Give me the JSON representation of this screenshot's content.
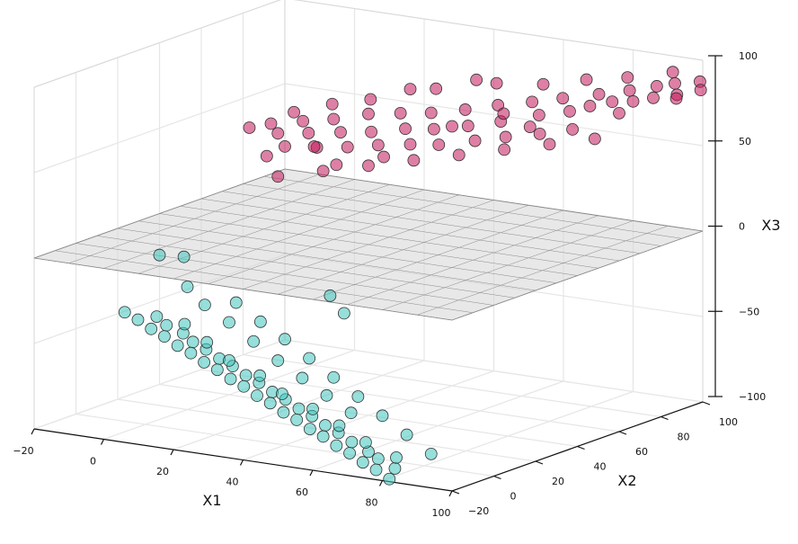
{
  "chart_data": {
    "type": "scatter3d",
    "title": "",
    "xlabel": "X1",
    "ylabel": "X2",
    "zlabel": "X3",
    "xlim": [
      -20,
      100
    ],
    "ylim": [
      -20,
      100
    ],
    "zlim": [
      -100,
      100
    ],
    "x_ticks": [
      -20,
      0,
      20,
      40,
      60,
      80,
      100
    ],
    "y_ticks": [
      -20,
      0,
      20,
      40,
      60,
      80,
      100
    ],
    "z_ticks": [
      -100,
      -50,
      0,
      50,
      100
    ],
    "x_tick_labels": [
      "−20",
      "0",
      "20",
      "40",
      "60",
      "80",
      "100"
    ],
    "y_tick_labels": [
      "−20",
      "0",
      "20",
      "40",
      "60",
      "80",
      "100"
    ],
    "z_tick_labels": [
      "−100",
      "−50",
      "0",
      "50",
      "100"
    ],
    "grid": true,
    "plane": {
      "description": "",
      "z": 0,
      "x_range": [
        -20,
        100
      ],
      "y_range": [
        -20,
        100
      ]
    },
    "series": [
      {
        "color": "#c2185b",
        "points": [
          [
            0,
            60,
            50
          ],
          [
            5,
            55,
            48
          ],
          [
            8,
            62,
            53
          ],
          [
            10,
            50,
            44
          ],
          [
            12,
            58,
            49
          ],
          [
            15,
            65,
            55
          ],
          [
            18,
            52,
            45
          ],
          [
            20,
            60,
            51
          ],
          [
            22,
            70,
            58
          ],
          [
            25,
            55,
            46
          ],
          [
            27,
            63,
            52
          ],
          [
            30,
            72,
            60
          ],
          [
            32,
            58,
            48
          ],
          [
            35,
            66,
            55
          ],
          [
            37,
            75,
            61
          ],
          [
            40,
            60,
            50
          ],
          [
            42,
            68,
            56
          ],
          [
            45,
            78,
            64
          ],
          [
            47,
            62,
            51
          ],
          [
            50,
            71,
            59
          ],
          [
            52,
            82,
            67
          ],
          [
            55,
            66,
            54
          ],
          [
            57,
            75,
            62
          ],
          [
            60,
            85,
            70
          ],
          [
            62,
            69,
            57
          ],
          [
            65,
            80,
            66
          ],
          [
            67,
            88,
            73
          ],
          [
            70,
            72,
            60
          ],
          [
            72,
            83,
            69
          ],
          [
            75,
            92,
            76
          ],
          [
            77,
            76,
            63
          ],
          [
            80,
            90,
            74
          ],
          [
            82,
            95,
            79
          ],
          [
            85,
            85,
            71
          ],
          [
            88,
            98,
            82
          ],
          [
            90,
            93,
            78
          ],
          [
            92,
            100,
            84
          ],
          [
            95,
            96,
            80
          ],
          [
            98,
            102,
            86
          ],
          [
            100,
            99,
            83
          ],
          [
            14,
            40,
            32
          ],
          [
            24,
            45,
            36
          ],
          [
            34,
            50,
            40
          ],
          [
            44,
            55,
            44
          ],
          [
            54,
            60,
            48
          ],
          [
            64,
            65,
            52
          ],
          [
            74,
            70,
            56
          ],
          [
            84,
            75,
            60
          ],
          [
            28,
            80,
            70
          ],
          [
            48,
            88,
            76
          ],
          [
            6,
            48,
            38
          ],
          [
            16,
            54,
            44
          ],
          [
            26,
            48,
            39
          ],
          [
            36,
            54,
            44
          ],
          [
            46,
            70,
            58
          ],
          [
            56,
            78,
            65
          ],
          [
            66,
            74,
            62
          ],
          [
            76,
            86,
            72
          ],
          [
            86,
            90,
            76
          ],
          [
            96,
            94,
            79
          ],
          [
            -5,
            58,
            47
          ],
          [
            3,
            66,
            55
          ],
          [
            11,
            71,
            60
          ],
          [
            19,
            76,
            63
          ],
          [
            33,
            84,
            70
          ],
          [
            41,
            90,
            75
          ],
          [
            59,
            92,
            77
          ],
          [
            69,
            96,
            81
          ],
          [
            79,
            99,
            84
          ],
          [
            89,
            104,
            88
          ]
        ]
      },
      {
        "color": "#40c4bd",
        "points": [
          [
            0,
            -10,
            -30
          ],
          [
            5,
            -12,
            -32
          ],
          [
            8,
            -8,
            -31
          ],
          [
            10,
            -14,
            -35
          ],
          [
            12,
            -10,
            -34
          ],
          [
            15,
            -16,
            -37
          ],
          [
            18,
            -12,
            -36
          ],
          [
            20,
            -18,
            -40
          ],
          [
            22,
            -14,
            -39
          ],
          [
            25,
            -20,
            -42
          ],
          [
            27,
            -16,
            -41
          ],
          [
            30,
            -22,
            -45
          ],
          [
            32,
            -18,
            -44
          ],
          [
            35,
            -24,
            -47
          ],
          [
            37,
            -20,
            -46
          ],
          [
            40,
            -26,
            -50
          ],
          [
            42,
            -22,
            -49
          ],
          [
            45,
            -28,
            -52
          ],
          [
            47,
            -24,
            -51
          ],
          [
            50,
            -30,
            -55
          ],
          [
            52,
            -26,
            -54
          ],
          [
            55,
            -32,
            -57
          ],
          [
            57,
            -28,
            -56
          ],
          [
            60,
            -34,
            -60
          ],
          [
            62,
            -30,
            -59
          ],
          [
            65,
            -36,
            -62
          ],
          [
            67,
            -32,
            -61
          ],
          [
            70,
            -38,
            -65
          ],
          [
            72,
            -34,
            -64
          ],
          [
            75,
            -40,
            -67
          ],
          [
            77,
            -36,
            -66
          ],
          [
            80,
            -42,
            -70
          ],
          [
            82,
            -38,
            -69
          ],
          [
            85,
            -44,
            -72
          ],
          [
            88,
            -40,
            -72
          ],
          [
            90,
            -46,
            -75
          ],
          [
            92,
            -42,
            -74
          ],
          [
            95,
            -48,
            -77
          ],
          [
            98,
            -44,
            -77
          ],
          [
            100,
            -50,
            -80
          ],
          [
            -8,
            20,
            -12
          ],
          [
            -4,
            25,
            -14
          ],
          [
            6,
            10,
            -22
          ],
          [
            14,
            5,
            -28
          ],
          [
            24,
            0,
            -33
          ],
          [
            34,
            -5,
            -39
          ],
          [
            44,
            -10,
            -45
          ],
          [
            54,
            -15,
            -50
          ],
          [
            64,
            -20,
            -55
          ],
          [
            74,
            -25,
            -60
          ],
          [
            16,
            -8,
            -33
          ],
          [
            26,
            -14,
            -38
          ],
          [
            36,
            -20,
            -43
          ],
          [
            46,
            -22,
            -48
          ],
          [
            56,
            -28,
            -53
          ],
          [
            66,
            -30,
            -58
          ],
          [
            76,
            -34,
            -63
          ],
          [
            86,
            -38,
            -68
          ],
          [
            96,
            -40,
            -73
          ],
          [
            20,
            10,
            -27
          ],
          [
            30,
            5,
            -33
          ],
          [
            40,
            0,
            -38
          ],
          [
            50,
            -5,
            -44
          ],
          [
            60,
            -10,
            -50
          ],
          [
            70,
            -15,
            -56
          ],
          [
            80,
            -20,
            -62
          ],
          [
            90,
            -25,
            -68
          ],
          [
            100,
            -30,
            -74
          ],
          [
            45,
            20,
            -30
          ],
          [
            38,
            25,
            -24
          ]
        ]
      }
    ]
  }
}
